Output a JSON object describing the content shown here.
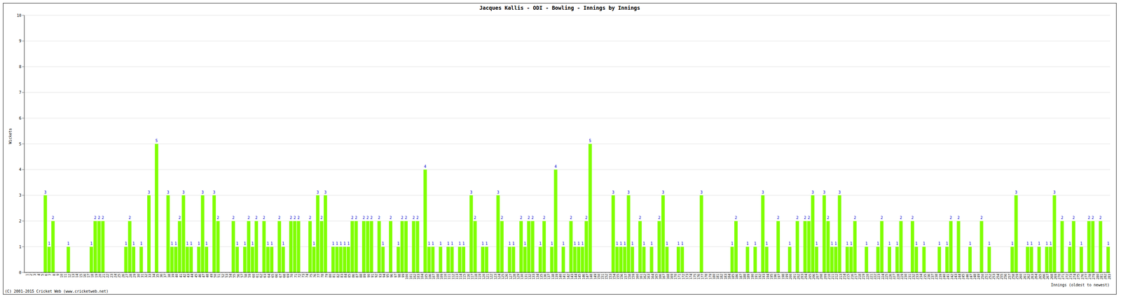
{
  "chart_data": {
    "type": "bar",
    "title": "Jacques Kallis - ODI - Bowling - Innings by Innings",
    "xlabel": "Innings (oldest to newest)",
    "ylabel": "Wickets",
    "annotations": [
      "(C) 2001-2015 Cricket Web (www.cricketweb.net)"
    ],
    "categories": [
      1,
      2,
      3,
      4,
      5,
      6,
      7,
      8,
      9,
      10,
      11,
      12,
      13,
      14,
      15,
      16,
      17,
      18,
      19,
      20,
      21,
      22,
      23,
      24,
      25,
      26,
      27,
      28,
      29,
      30,
      31,
      32,
      33,
      34,
      35,
      36,
      37,
      38,
      39,
      40,
      41,
      42,
      43,
      44,
      45,
      46,
      47,
      48,
      49,
      50,
      51,
      52,
      53,
      54,
      55,
      56,
      57,
      58,
      59,
      60,
      61,
      62,
      63,
      64,
      65,
      66,
      67,
      68,
      69,
      70,
      71,
      72,
      73,
      74,
      75,
      76,
      77,
      78,
      79,
      80,
      81,
      82,
      83,
      84,
      85,
      86,
      87,
      88,
      89,
      90,
      91,
      92,
      93,
      94,
      95,
      96,
      97,
      98,
      99,
      100,
      101,
      102,
      103,
      104,
      105,
      106,
      107,
      108,
      109,
      110,
      111,
      112,
      113,
      114,
      115,
      116,
      117,
      118,
      119,
      120,
      121,
      122,
      123,
      124,
      125,
      126,
      127,
      128,
      129,
      130,
      131,
      132,
      133,
      134,
      135,
      136,
      137,
      138,
      139,
      140,
      141,
      142,
      143,
      144,
      145,
      146,
      147,
      148,
      149,
      150,
      151,
      152,
      153,
      154,
      155,
      156,
      157,
      158,
      159,
      160,
      161,
      162,
      163,
      164,
      165,
      166,
      167,
      168,
      169,
      170,
      171,
      172,
      173,
      174,
      175,
      176,
      177,
      178,
      179,
      180,
      181,
      182,
      183,
      184,
      185,
      186,
      187,
      188,
      189,
      190,
      191,
      192,
      193,
      194,
      195,
      196,
      197,
      198,
      199,
      200,
      201,
      202,
      203,
      204,
      205,
      206,
      207,
      208,
      209,
      210,
      211,
      212,
      213,
      214,
      215,
      216,
      217,
      218,
      219,
      220,
      221,
      222,
      223,
      224,
      225,
      226,
      227,
      228,
      229,
      230,
      231,
      232,
      233,
      234,
      235,
      236,
      237,
      238,
      239,
      240,
      241,
      242,
      243,
      244,
      245,
      246,
      247,
      248,
      249,
      250,
      251,
      252,
      253,
      254,
      255,
      256,
      257,
      258,
      259,
      260,
      261,
      262,
      263,
      264,
      265,
      266,
      267,
      268,
      269,
      270,
      271,
      272,
      273,
      274,
      275,
      276,
      277,
      278,
      279,
      280,
      281,
      282,
      283
    ],
    "values": [
      0,
      0,
      0,
      0,
      0,
      3,
      1,
      2,
      0,
      0,
      0,
      1,
      0,
      0,
      0,
      0,
      0,
      1,
      2,
      2,
      2,
      0,
      0,
      0,
      0,
      0,
      1,
      2,
      1,
      0,
      1,
      0,
      3,
      0,
      5,
      0,
      0,
      3,
      1,
      1,
      2,
      3,
      1,
      1,
      0,
      1,
      3,
      1,
      0,
      3,
      2,
      0,
      0,
      0,
      2,
      1,
      0,
      1,
      2,
      1,
      2,
      0,
      2,
      1,
      1,
      0,
      2,
      1,
      0,
      2,
      2,
      2,
      0,
      0,
      2,
      1,
      3,
      2,
      3,
      0,
      1,
      1,
      1,
      1,
      1,
      2,
      2,
      0,
      2,
      2,
      2,
      0,
      2,
      1,
      0,
      2,
      0,
      1,
      2,
      2,
      0,
      2,
      2,
      0,
      4,
      1,
      1,
      0,
      1,
      0,
      1,
      1,
      0,
      1,
      1,
      0,
      3,
      2,
      0,
      1,
      1,
      0,
      0,
      3,
      2,
      0,
      1,
      1,
      0,
      2,
      1,
      2,
      2,
      0,
      1,
      2,
      0,
      1,
      4,
      0,
      1,
      0,
      2,
      1,
      1,
      1,
      2,
      5,
      0,
      0,
      0,
      0,
      0,
      3,
      1,
      1,
      1,
      3,
      1,
      0,
      2,
      1,
      0,
      1,
      0,
      2,
      3,
      1,
      0,
      0,
      1,
      1,
      0,
      0,
      0,
      0,
      3,
      0,
      0,
      0,
      0,
      0,
      0,
      0,
      1,
      2,
      0,
      0,
      1,
      0,
      1,
      0,
      3,
      1,
      0,
      0,
      2,
      0,
      0,
      1,
      0,
      2,
      0,
      2,
      2,
      3,
      1,
      0,
      3,
      2,
      1,
      1,
      3,
      0,
      1,
      1,
      2,
      0,
      0,
      1,
      0,
      0,
      1,
      2,
      0,
      1,
      0,
      1,
      2,
      0,
      0,
      2,
      1,
      0,
      1,
      0,
      0,
      0,
      1,
      0,
      1,
      2,
      0,
      2,
      0,
      0,
      1,
      0,
      0,
      2,
      0,
      1,
      0,
      0,
      0,
      0,
      0,
      1,
      3,
      0,
      0,
      1,
      1,
      0,
      1,
      0,
      1,
      1,
      3,
      0,
      2,
      0,
      1,
      2,
      0,
      1,
      0,
      2,
      2,
      0,
      2,
      0,
      1
    ],
    "color": "#80ff00",
    "ylim": [
      0,
      10
    ],
    "yticks": [
      0,
      1,
      2,
      3,
      4,
      5,
      6,
      7,
      8,
      9,
      10
    ],
    "grid": true,
    "data_labels": true
  }
}
